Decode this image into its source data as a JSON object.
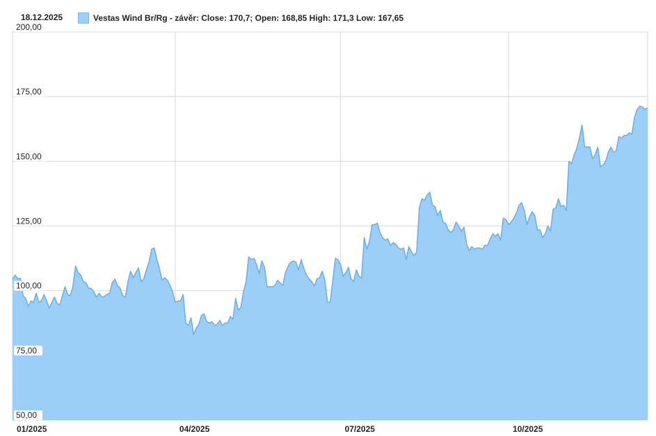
{
  "header": {
    "date": "18.12.2025",
    "legend_text": "Vestas Wind Br/Rg - závěr: Close: 170,7; Open: 168,85 High: 171,3 Low: 167,65",
    "series_color": "#9bcff7",
    "line_color": "#6ab0ea"
  },
  "chart_data": {
    "type": "area",
    "title": "",
    "xlabel": "",
    "ylabel": "",
    "ylim": [
      50,
      200
    ],
    "grid": true,
    "y_ticks": [
      50,
      75,
      100,
      125,
      150,
      175,
      200
    ],
    "y_tick_labels": [
      "50,00",
      "75,00",
      "100,00",
      "125,00",
      "150,00",
      "175,00",
      "200,00"
    ],
    "x_tick_labels": [
      "01/2025",
      "04/2025",
      "07/2025",
      "10/2025"
    ],
    "x_tick_index": [
      0,
      62,
      125,
      189
    ],
    "series": [
      {
        "name": "Vestas Wind Br/Rg",
        "values": [
          104.5,
          106,
          104.5,
          104.8,
          98,
          97,
          94,
          96,
          95.5,
          99,
          95.5,
          96,
          98.5,
          96,
          93.2,
          95.5,
          97.5,
          95,
          94.5,
          98,
          101.5,
          98.5,
          98,
          101.5,
          109.5,
          107,
          106,
          103.5,
          103,
          101,
          100.8,
          99.5,
          97.5,
          99,
          97.5,
          97.8,
          98.5,
          99,
          103,
          104.5,
          102,
          101,
          98,
          97.5,
          103.5,
          107.5,
          105,
          107,
          108.8,
          103.5,
          104.5,
          108,
          111,
          116,
          116.5,
          112,
          108.5,
          104,
          105,
          104,
          102,
          99.5,
          95.5,
          96,
          96,
          98.5,
          87.5,
          86.5,
          89.5,
          83,
          85.5,
          87,
          90.5,
          91,
          88,
          87.5,
          88,
          86.5,
          87,
          88.5,
          86.5,
          87.5,
          87.5,
          90,
          89,
          97,
          92.5,
          93.5,
          99.5,
          103.5,
          113,
          112,
          112.5,
          110,
          106.5,
          111.5,
          109,
          101.5,
          101.5,
          101.5,
          102,
          104,
          103,
          102,
          107,
          109.5,
          111,
          111.5,
          111,
          108,
          112,
          108.5,
          106,
          104.5,
          103.5,
          101.8,
          104.5,
          105,
          107.5,
          104,
          95.5,
          95.5,
          103.5,
          112.5,
          112,
          110,
          105.5,
          107,
          109,
          104.5,
          103.5,
          108,
          105.5,
          105,
          120.5,
          116,
          119,
          125.5,
          125.5,
          126,
          122.5,
          120.5,
          119.5,
          120,
          117.5,
          118.5,
          118,
          116.5,
          116,
          116.5,
          112,
          117,
          115,
          113.5,
          115,
          132,
          135.5,
          135,
          137,
          138,
          133,
          132.5,
          129,
          131,
          126.5,
          126,
          123.5,
          122.5,
          123.5,
          126.5,
          125,
          123,
          124.5,
          118,
          115.5,
          117,
          116,
          116.5,
          116.5,
          116,
          117.5,
          117.5,
          120,
          122,
          121,
          122,
          119.5,
          128,
          127.5,
          125.5,
          126.5,
          128,
          130,
          133,
          134,
          131,
          125.5,
          128.5,
          130.5,
          129,
          123.5,
          123.5,
          120.5,
          122,
          125,
          123,
          131.5,
          132,
          135.5,
          132.5,
          133,
          131,
          150,
          149,
          152.5,
          155,
          159,
          164,
          155.5,
          155.5,
          155.5,
          151,
          152.5,
          155.5,
          148,
          148.5,
          150,
          153.5,
          155.5,
          153.5,
          154,
          159.5,
          159,
          160,
          160,
          161,
          160.5,
          167,
          170,
          171.3,
          171,
          170,
          170.7
        ]
      }
    ]
  }
}
